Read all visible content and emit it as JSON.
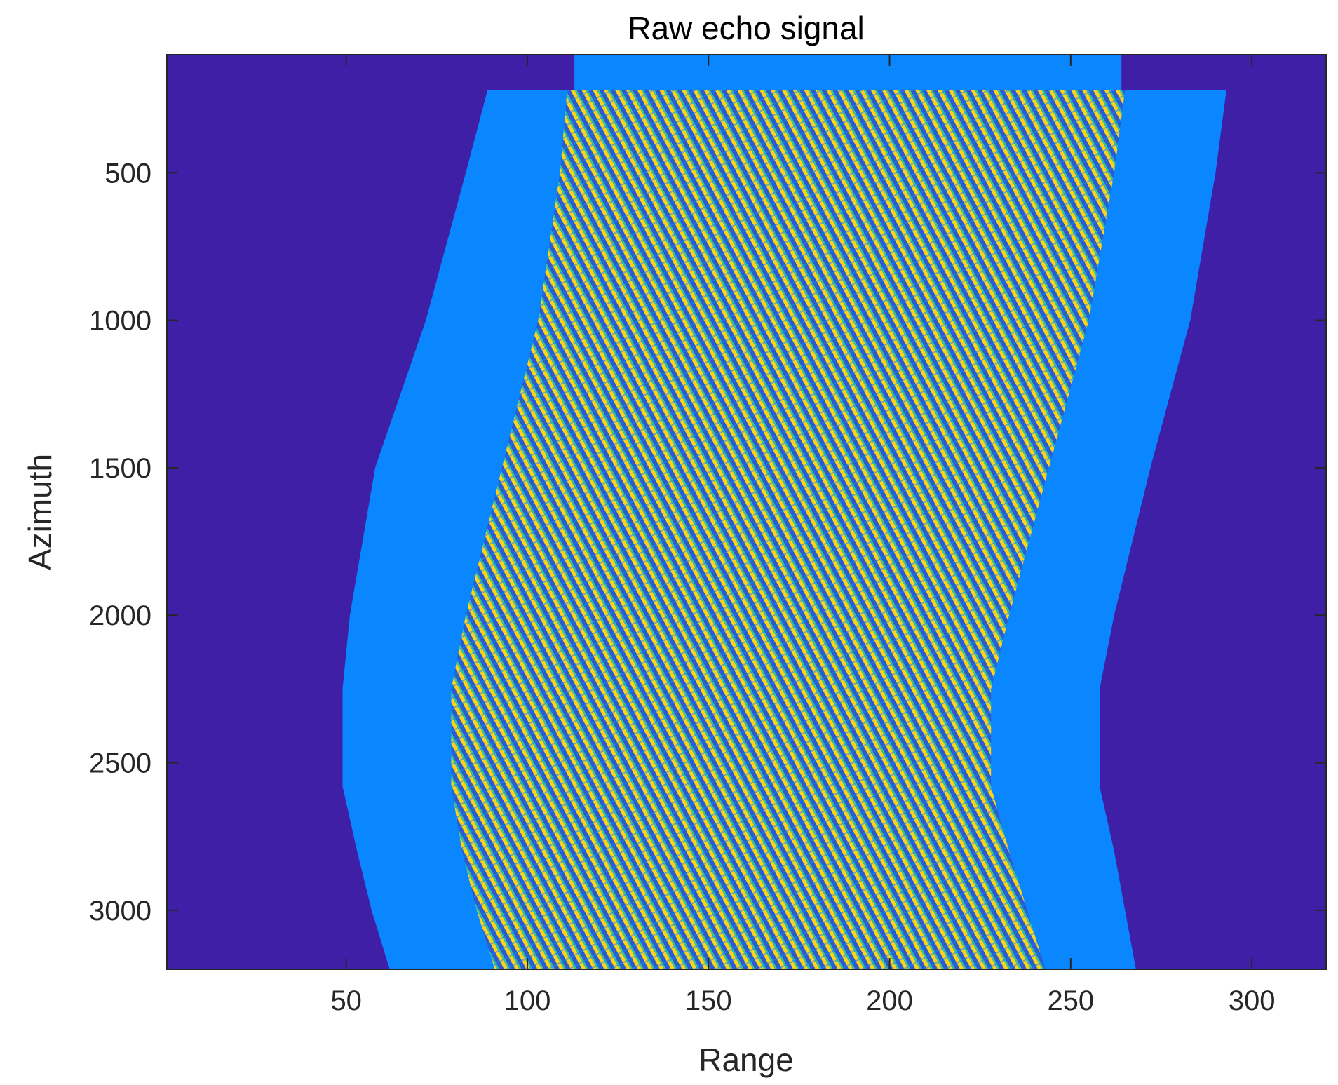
{
  "chart_data": {
    "type": "heatmap",
    "title": "Raw echo signal",
    "xlabel": "Range",
    "ylabel": "Azimuth",
    "xlim": [
      0.5,
      320.5
    ],
    "ylim": [
      100,
      3200
    ],
    "y_direction": "reverse",
    "xticks": [
      50,
      100,
      150,
      200,
      250,
      300
    ],
    "xtick_labels": [
      "50",
      "100",
      "150",
      "200",
      "250",
      "300"
    ],
    "yticks": [
      500,
      1000,
      1500,
      2000,
      2500,
      3000
    ],
    "ytick_labels": [
      "500",
      "1000",
      "1500",
      "2000",
      "2500",
      "3000"
    ],
    "grid": false,
    "colormap": "parula",
    "colors": {
      "background": "#3f1fa6",
      "envelope": "#0a86ff",
      "fringe_dark": "#2b5ccf",
      "fringe_light": "#ffd21a",
      "fringe_mid": "#3bbf9a"
    },
    "regions": [
      {
        "name": "outer-envelope",
        "color_key": "envelope",
        "top_band": {
          "az": [
            100,
            220
          ],
          "range": [
            113,
            264
          ]
        },
        "left_edge": [
          [
            220,
            89
          ],
          [
            500,
            83
          ],
          [
            1000,
            72
          ],
          [
            1500,
            58
          ],
          [
            2000,
            51
          ],
          [
            2250,
            49
          ],
          [
            2580,
            49
          ],
          [
            2800,
            53
          ],
          [
            3000,
            57
          ],
          [
            3200,
            62
          ]
        ],
        "right_edge": [
          [
            220,
            293
          ],
          [
            500,
            290
          ],
          [
            1000,
            283
          ],
          [
            1500,
            272
          ],
          [
            2000,
            262
          ],
          [
            2250,
            258
          ],
          [
            2580,
            258
          ],
          [
            2800,
            262
          ],
          [
            3000,
            265
          ],
          [
            3200,
            268
          ]
        ]
      },
      {
        "name": "inner-signal",
        "color_key": "fringe",
        "left_edge": [
          [
            220,
            111
          ],
          [
            500,
            109
          ],
          [
            1000,
            103
          ],
          [
            1500,
            93
          ],
          [
            2000,
            83
          ],
          [
            2250,
            79
          ],
          [
            2580,
            79
          ],
          [
            2800,
            82
          ],
          [
            3000,
            86
          ],
          [
            3200,
            91
          ]
        ],
        "right_edge": [
          [
            220,
            265
          ],
          [
            500,
            262
          ],
          [
            1000,
            255
          ],
          [
            1500,
            244
          ],
          [
            2000,
            233
          ],
          [
            2250,
            228
          ],
          [
            2580,
            228
          ],
          [
            2800,
            233
          ],
          [
            3000,
            238
          ],
          [
            3200,
            243
          ]
        ]
      }
    ]
  }
}
